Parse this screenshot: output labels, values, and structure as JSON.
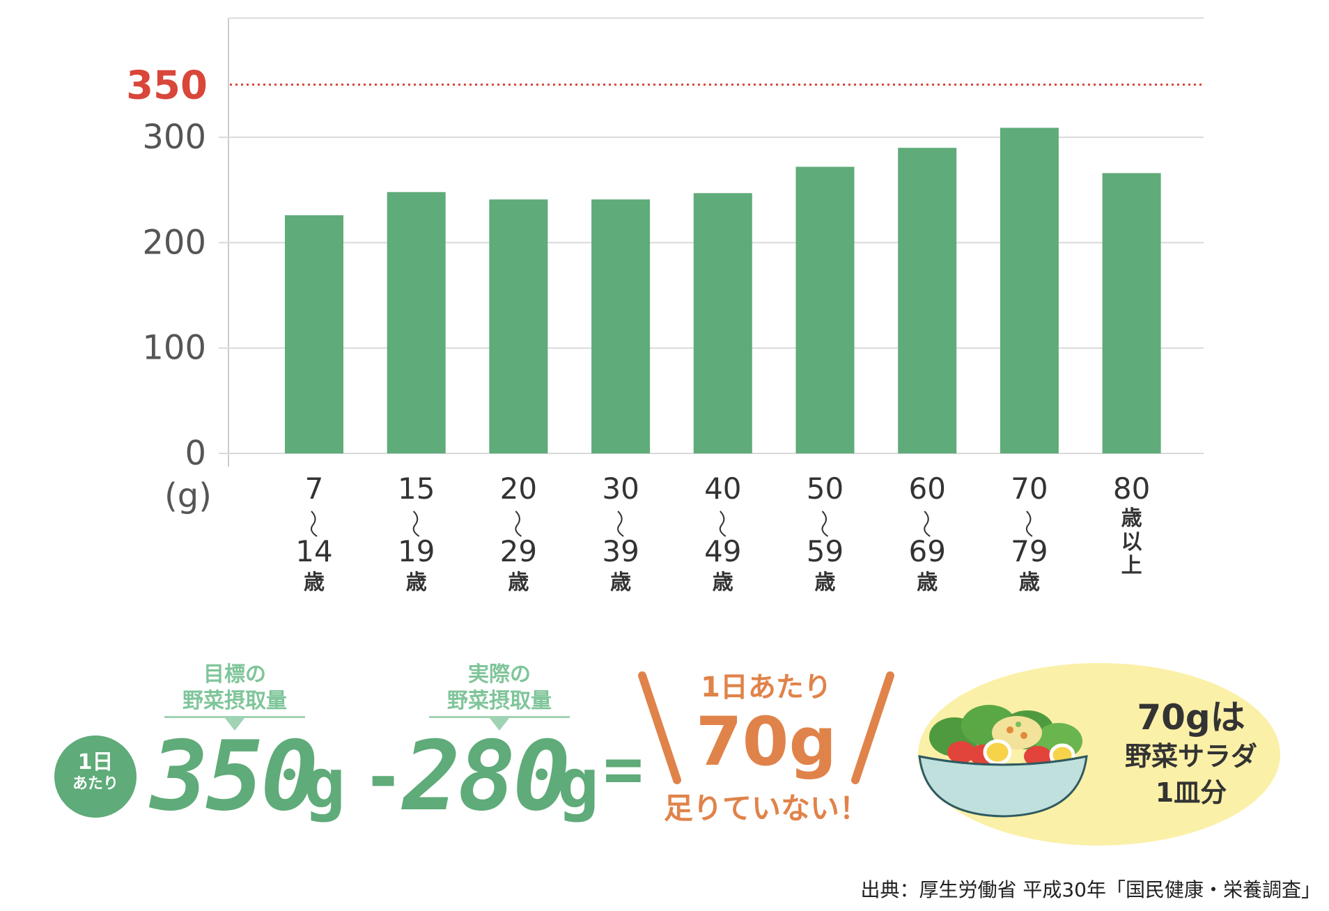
{
  "chart_data": {
    "type": "bar",
    "unit_label": "(g)",
    "yticks": [
      0,
      100,
      200,
      300
    ],
    "ylim": [
      0,
      420
    ],
    "reference_line": {
      "value": 350,
      "label": "350",
      "color": "#d9463a",
      "style": "dotted"
    },
    "bar_color": "#5fab79",
    "grid": true,
    "categories": [
      {
        "top": "7",
        "bottom": "14",
        "suffix": "歳"
      },
      {
        "top": "15",
        "bottom": "19",
        "suffix": "歳"
      },
      {
        "top": "20",
        "bottom": "29",
        "suffix": "歳"
      },
      {
        "top": "30",
        "bottom": "39",
        "suffix": "歳"
      },
      {
        "top": "40",
        "bottom": "49",
        "suffix": "歳"
      },
      {
        "top": "50",
        "bottom": "59",
        "suffix": "歳"
      },
      {
        "top": "60",
        "bottom": "69",
        "suffix": "歳"
      },
      {
        "top": "70",
        "bottom": "79",
        "suffix": "歳"
      },
      {
        "top": "80",
        "bottom": "",
        "suffix": "歳以上"
      }
    ],
    "values": [
      226,
      248,
      241,
      241,
      247,
      272,
      290,
      309,
      266
    ]
  },
  "equation": {
    "badge_line1": "1日",
    "badge_line2": "あたり",
    "target_label_1": "目標の",
    "target_label_2": "野菜摂取量",
    "target_value": "350",
    "actual_label_1": "実際の",
    "actual_label_2": "野菜摂取量",
    "actual_value": "280",
    "unit": "g",
    "minus": "-",
    "equals": "=",
    "result_top": "1日あたり",
    "result_value": "70g",
    "result_bottom": "足りていない！"
  },
  "salad": {
    "line1": "70gは",
    "line2": "野菜サラダ",
    "line3": "1皿分"
  },
  "source": "出典：厚生労働省 平成30年「国民健康・栄養調査」"
}
